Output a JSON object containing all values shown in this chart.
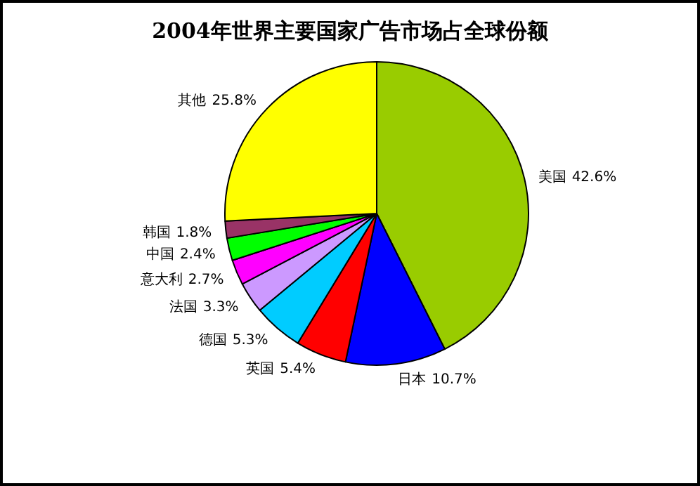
{
  "chart_data": {
    "type": "pie",
    "title": "2004年世界主要国家广告市场占全球份额",
    "categories": [
      "美国",
      "日本",
      "英国",
      "德国",
      "法国",
      "意大利",
      "中国",
      "韩国",
      "其他"
    ],
    "values": [
      42.6,
      10.7,
      5.4,
      5.3,
      3.3,
      2.7,
      2.4,
      1.8,
      25.8
    ],
    "colors": [
      "#99cc00",
      "#0000ff",
      "#ff0000",
      "#00ccff",
      "#cc99ff",
      "#ff00ff",
      "#00ff00",
      "#993366",
      "#ffff00"
    ],
    "value_labels": [
      "42.6%",
      "10.7%",
      "5.4%",
      "5.3%",
      "3.3%",
      "2.7%",
      "2.4%",
      "1.8%",
      "25.8%"
    ],
    "legend": false
  }
}
